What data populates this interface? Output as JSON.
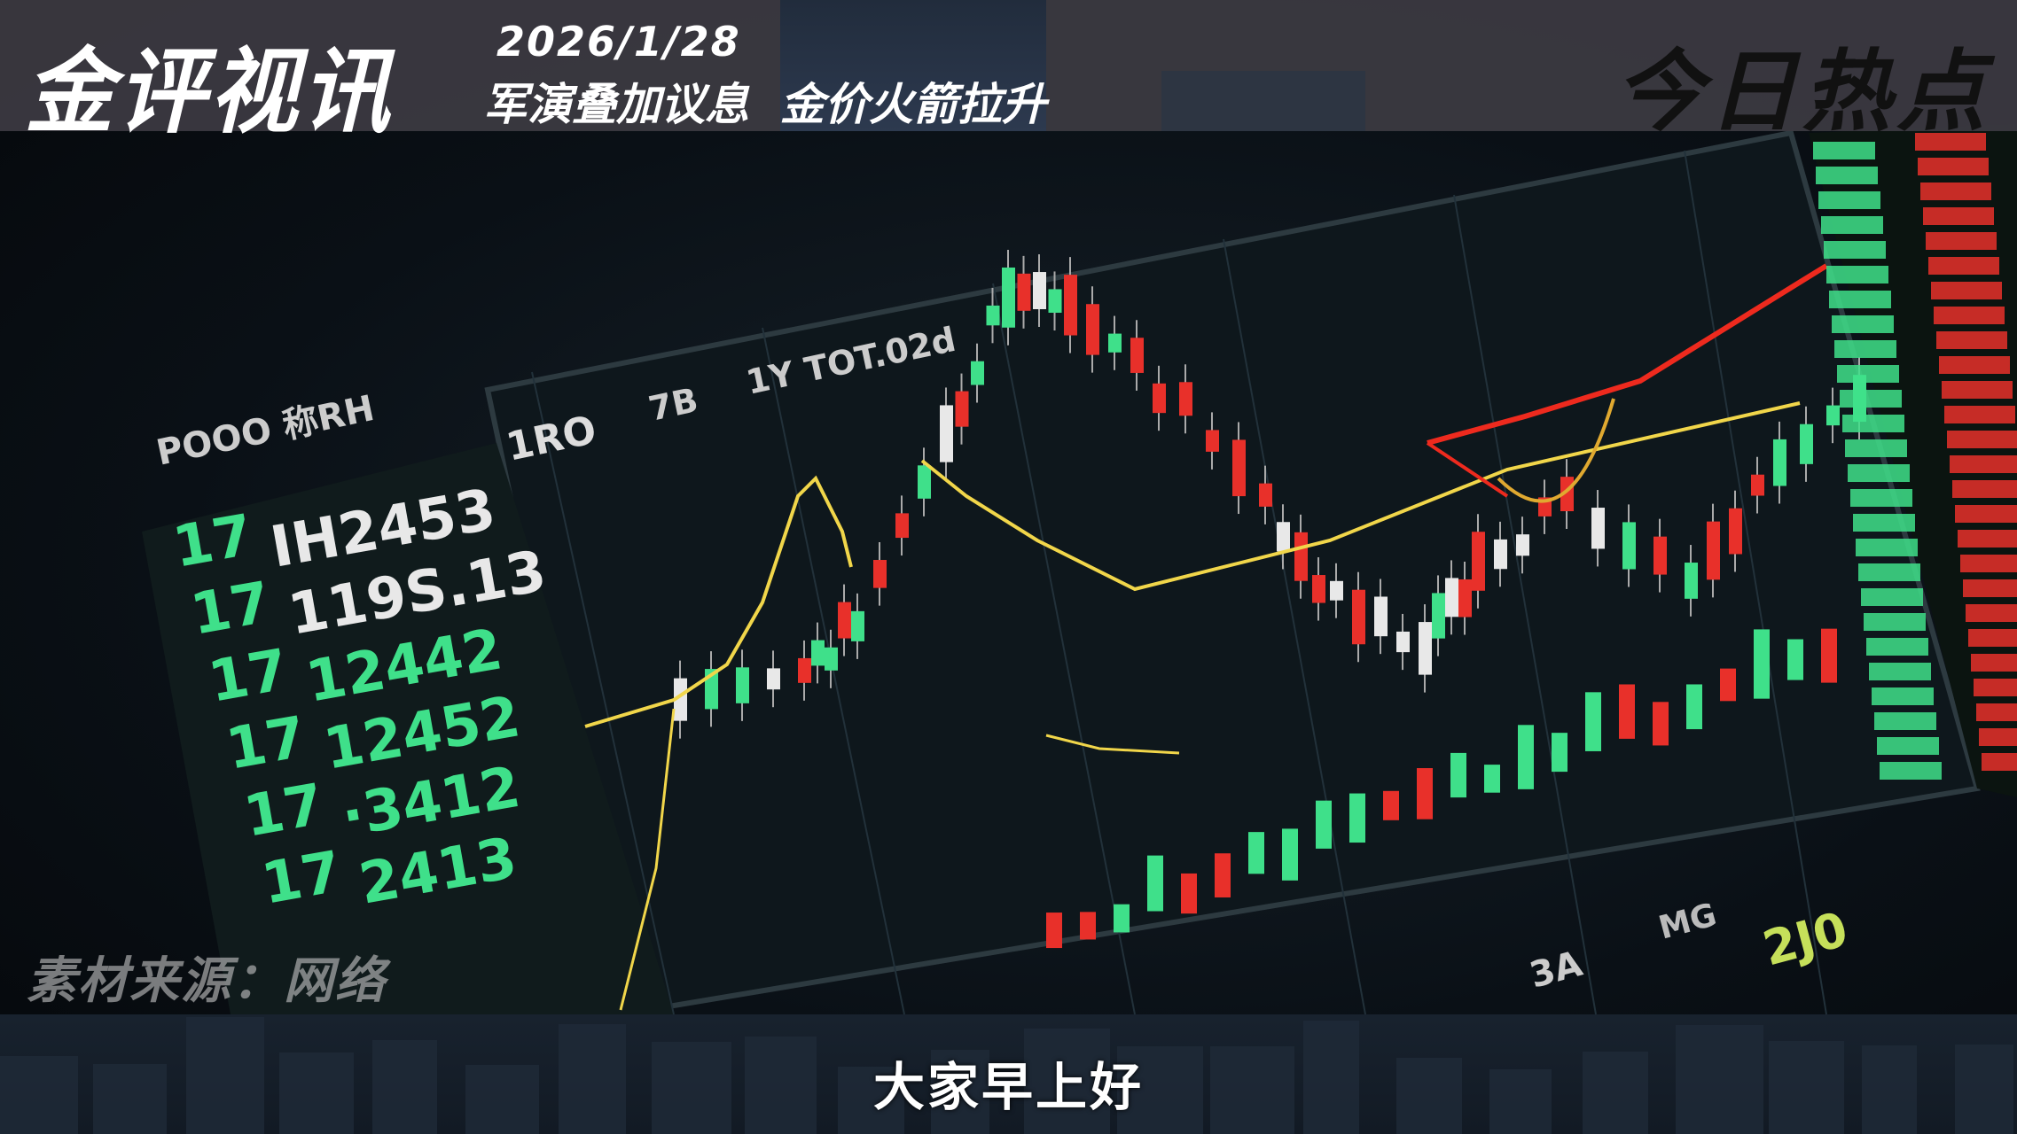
{
  "header": {
    "logo": "金评视讯",
    "date": "2026/1/28",
    "headline": "军演叠加议息  金价火箭拉升",
    "section_title": "今日热点"
  },
  "video": {
    "screen_labels": [
      "1RO",
      "7B",
      "1Y TOT.02d",
      "POOO 称RH"
    ],
    "ticker_values": [
      "IH2453",
      "119S.13",
      "12442",
      "12452",
      "·3412",
      "2413"
    ],
    "ticker_prefix": "17",
    "lower_labels": [
      "3A",
      "MG",
      "2J0"
    ],
    "colors": {
      "up": "#e8302a",
      "down": "#3fe08a",
      "ma_yellow": "#f1d64a",
      "ma_red": "#ee2a1e"
    }
  },
  "watermark": "素材来源：网络",
  "subtitle": "大家早上好"
}
